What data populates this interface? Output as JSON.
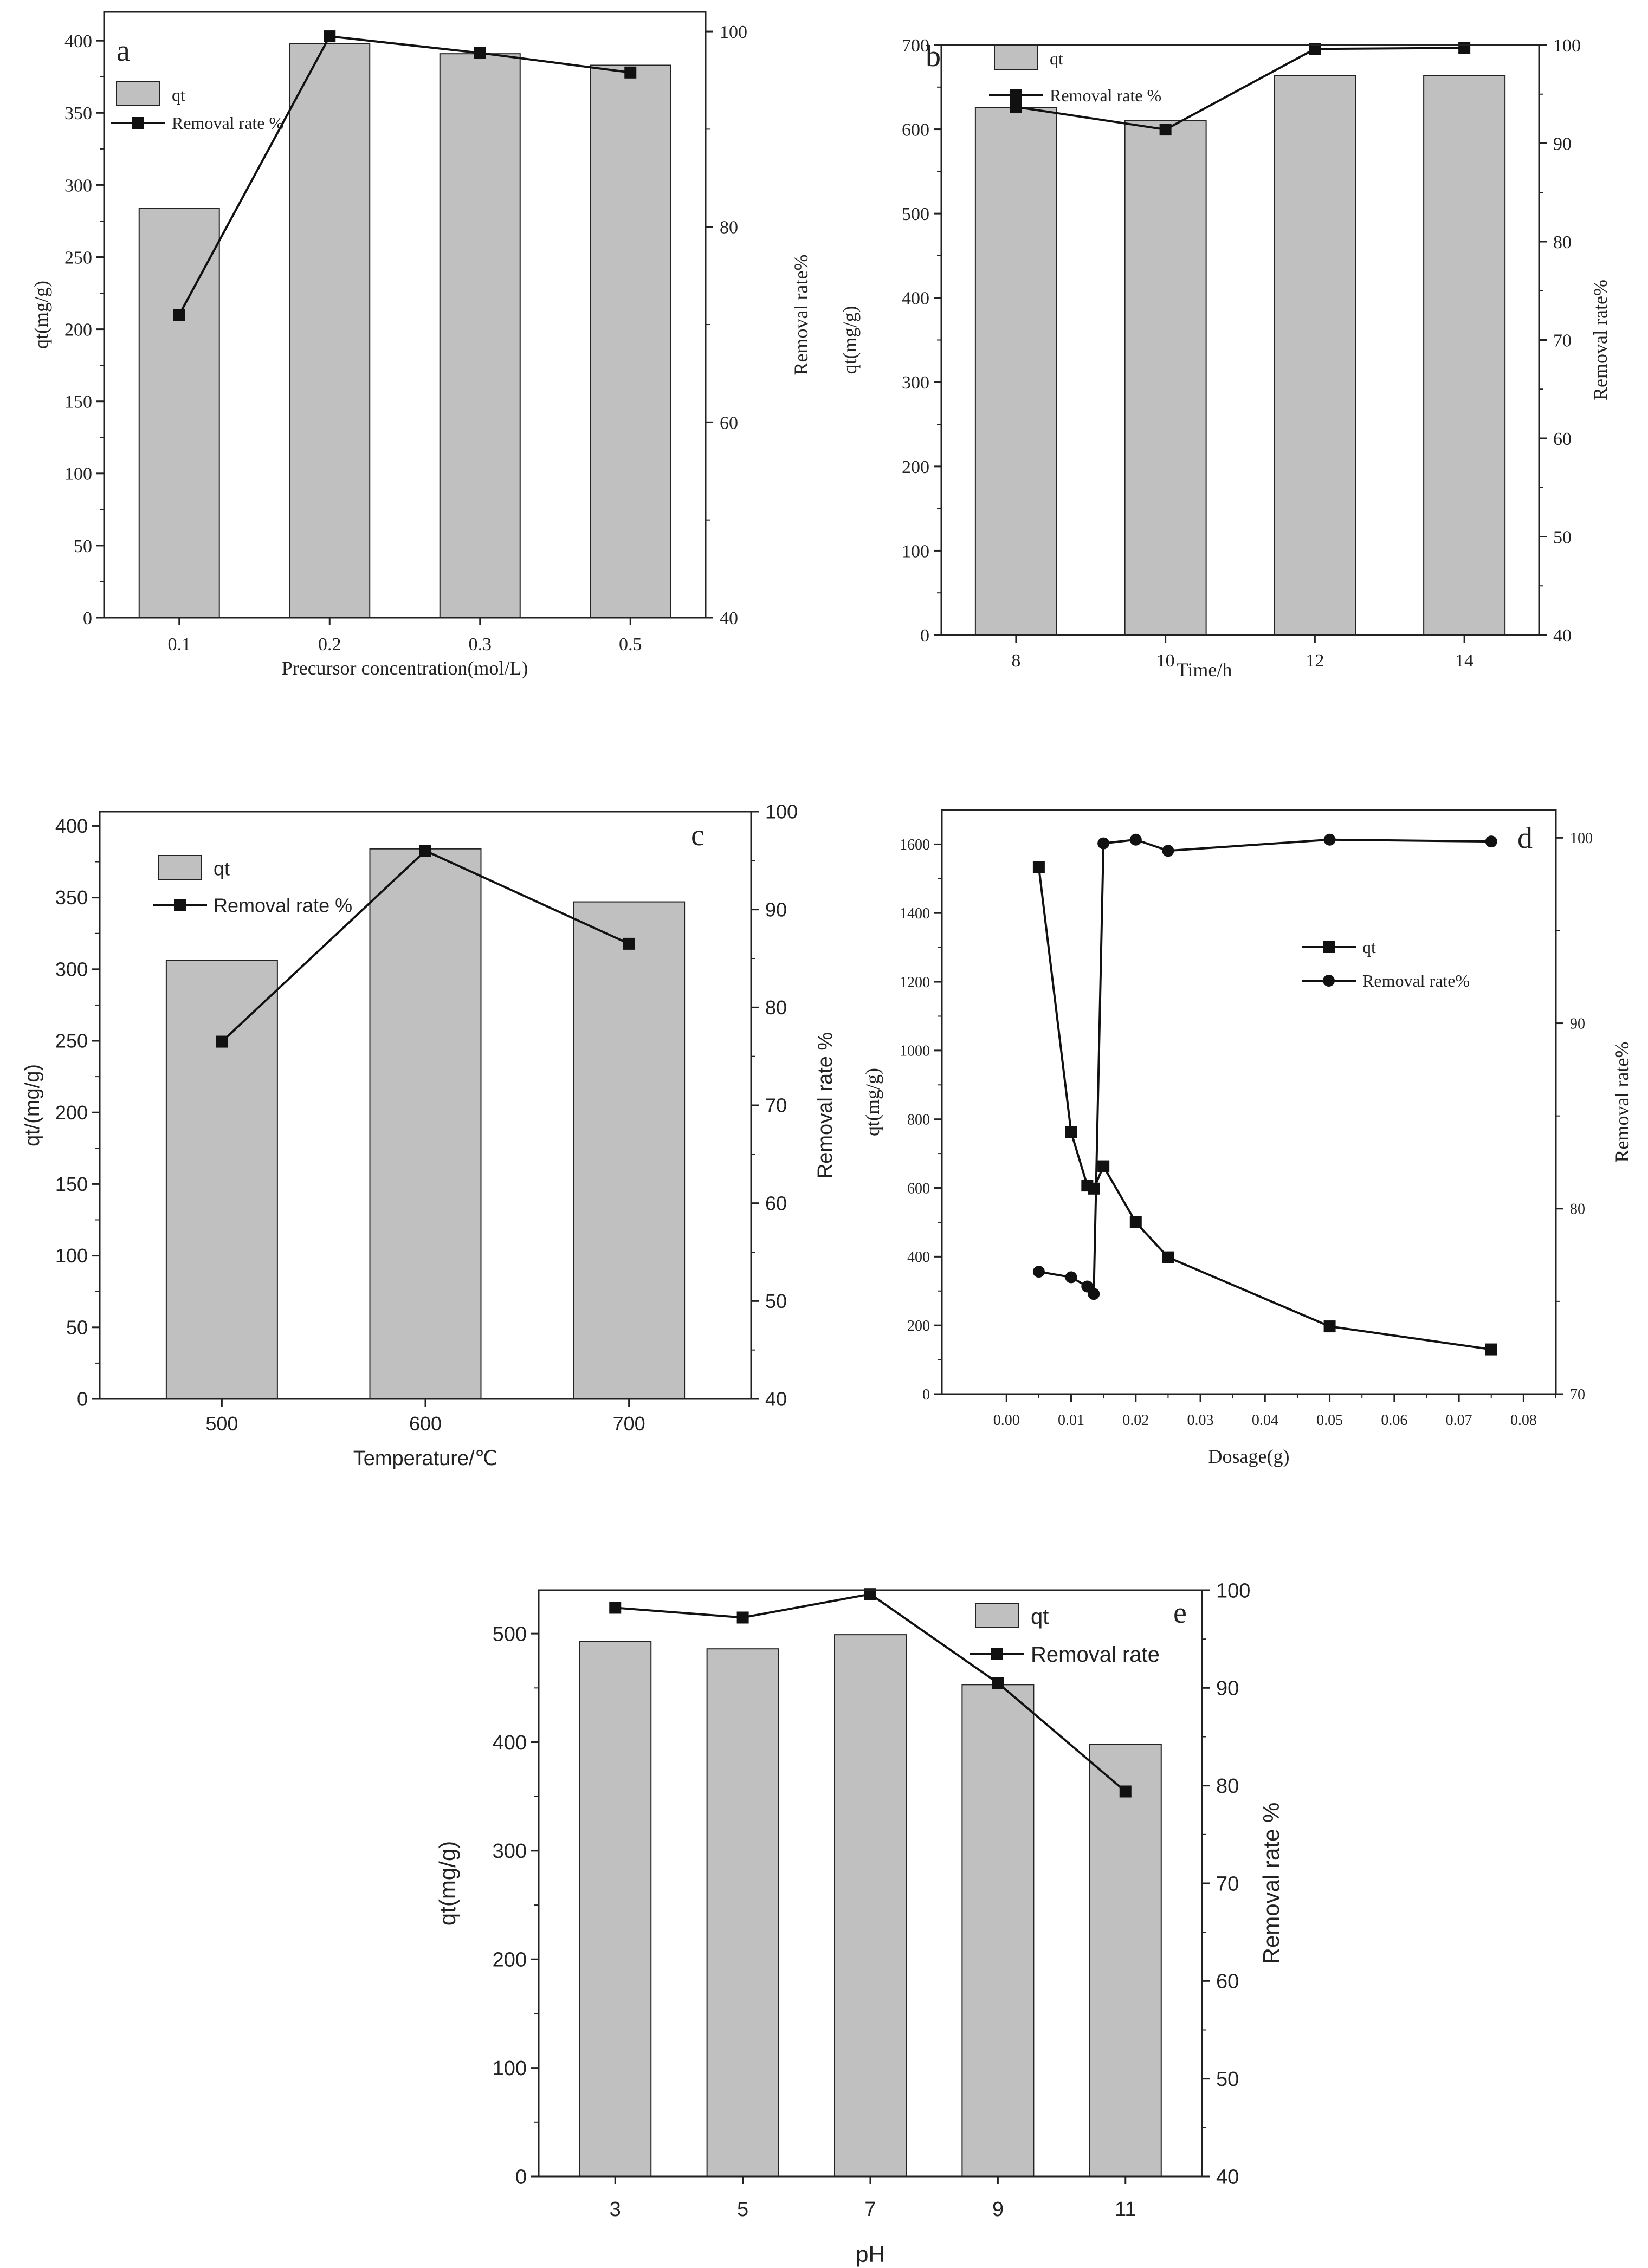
{
  "chart_data": [
    {
      "id": "a",
      "panel_label": "a",
      "type": "bar+line",
      "xlabel": "Precursor concentration(mol/L)",
      "ylabel": "qt(mg/g)",
      "y2label": "Removal rate%",
      "categories": [
        "0.1",
        "0.2",
        "0.3",
        "0.5"
      ],
      "ylim": [
        0,
        420
      ],
      "yticks": [
        0,
        50,
        100,
        150,
        200,
        250,
        300,
        350,
        400
      ],
      "y2lim": [
        40,
        102
      ],
      "y2ticks": [
        40,
        60,
        80,
        100
      ],
      "series": [
        {
          "name": "qt",
          "kind": "bar",
          "axis": "left",
          "values": [
            284,
            398,
            391,
            383
          ]
        },
        {
          "name": "Removal rate %",
          "kind": "line",
          "axis": "right",
          "marker": "square",
          "values": [
            71,
            99.5,
            97.8,
            95.8
          ]
        }
      ],
      "legend": [
        "qt",
        "Removal rate %"
      ],
      "legend_position": "top-left"
    },
    {
      "id": "b",
      "panel_label": "b",
      "type": "bar+line",
      "xlabel": "Time/h",
      "ylabel": "qt(mg/g)",
      "y2label": "Removal rate%",
      "categories": [
        "8",
        "10",
        "12",
        "14"
      ],
      "ylim": [
        0,
        700
      ],
      "yticks": [
        0,
        100,
        200,
        300,
        400,
        500,
        600,
        700
      ],
      "y2lim": [
        40,
        100
      ],
      "y2ticks": [
        40,
        50,
        60,
        70,
        80,
        90,
        100
      ],
      "series": [
        {
          "name": "qt",
          "kind": "bar",
          "axis": "left",
          "values": [
            626,
            610,
            664,
            664
          ]
        },
        {
          "name": "Removal rate %",
          "kind": "line",
          "axis": "right",
          "marker": "square",
          "values": [
            93.7,
            91.4,
            99.6,
            99.7
          ]
        }
      ],
      "legend": [
        "qt",
        "Removal rate %"
      ],
      "legend_position": "top-left"
    },
    {
      "id": "c",
      "panel_label": "c",
      "type": "bar+line",
      "xlabel": "Temperature/℃",
      "ylabel": "qt/(mg/g)",
      "y2label": "Removal rate %",
      "categories": [
        "500",
        "600",
        "700"
      ],
      "ylim": [
        0,
        410
      ],
      "yticks": [
        0,
        50,
        100,
        150,
        200,
        250,
        300,
        350,
        400
      ],
      "y2lim": [
        40,
        100
      ],
      "y2ticks": [
        40,
        50,
        60,
        70,
        80,
        90,
        100
      ],
      "series": [
        {
          "name": "qt",
          "kind": "bar",
          "axis": "left",
          "values": [
            306,
            384,
            347
          ]
        },
        {
          "name": "Removal rate %",
          "kind": "line",
          "axis": "right",
          "marker": "square",
          "values": [
            76.5,
            96,
            86.5
          ]
        }
      ],
      "legend": [
        "qt",
        "Removal rate %"
      ],
      "legend_position": "top-left"
    },
    {
      "id": "d",
      "panel_label": "d",
      "type": "line",
      "xlabel": "Dosage(g)",
      "ylabel": "qt(mg/g)",
      "y2label": "Removal rate%",
      "xlim": [
        -0.01,
        0.085
      ],
      "xticks": [
        "0.00",
        "0.01",
        "0.02",
        "0.03",
        "0.04",
        "0.05",
        "0.06",
        "0.07",
        "0.08"
      ],
      "ylim": [
        0,
        1700
      ],
      "yticks": [
        0,
        200,
        400,
        600,
        800,
        1000,
        1200,
        1400,
        1600
      ],
      "y2lim": [
        70,
        101.5
      ],
      "y2ticks": [
        70,
        80,
        90,
        100
      ],
      "series": [
        {
          "name": "qt",
          "kind": "line",
          "axis": "left",
          "marker": "square",
          "x": [
            0.005,
            0.01,
            0.0125,
            0.0135,
            0.015,
            0.02,
            0.025,
            0.05,
            0.075
          ],
          "values": [
            1533,
            762,
            607,
            598,
            663,
            500,
            398,
            197,
            130
          ]
        },
        {
          "name": "Removal rate%",
          "kind": "line",
          "axis": "right",
          "marker": "circle",
          "x": [
            0.005,
            0.01,
            0.0125,
            0.0135,
            0.015,
            0.02,
            0.025,
            0.05,
            0.075
          ],
          "values": [
            76.6,
            76.3,
            75.8,
            75.4,
            99.7,
            99.9,
            99.3,
            99.9,
            99.8
          ]
        }
      ],
      "legend": [
        "qt",
        "Removal rate%"
      ],
      "legend_position": "middle-right"
    },
    {
      "id": "e",
      "panel_label": "e",
      "type": "bar+line",
      "xlabel": "pH",
      "ylabel": "qt(mg/g)",
      "y2label": "Removal rate %",
      "categories": [
        "3",
        "5",
        "7",
        "9",
        "11"
      ],
      "ylim": [
        0,
        540
      ],
      "yticks": [
        0,
        100,
        200,
        300,
        400,
        500
      ],
      "y2lim": [
        40,
        100
      ],
      "y2ticks": [
        40,
        50,
        60,
        70,
        80,
        90,
        100
      ],
      "series": [
        {
          "name": "qt",
          "kind": "bar",
          "axis": "left",
          "values": [
            493,
            486,
            499,
            453,
            398
          ]
        },
        {
          "name": "Removal rate",
          "kind": "line",
          "axis": "right",
          "marker": "square",
          "values": [
            98.2,
            97.2,
            99.6,
            90.5,
            79.4
          ]
        }
      ],
      "legend": [
        "qt",
        "Removal rate"
      ],
      "legend_position": "top-right"
    }
  ]
}
